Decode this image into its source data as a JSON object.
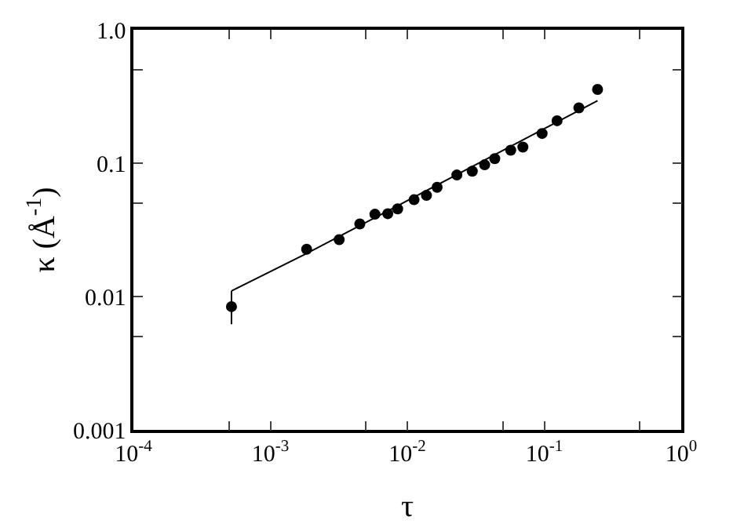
{
  "chart_data": {
    "type": "scatter",
    "xlabel": "τ",
    "ylabel": "κ (Å$^{-1}$)",
    "log": "xy",
    "grid": false,
    "xlim": [
      0.0001,
      1
    ],
    "ylim": [
      0.001,
      1
    ],
    "xticks": [
      {
        "value": 0.0001,
        "label": "10$^{-4}$"
      },
      {
        "value": 0.0005,
        "label": null
      },
      {
        "value": 0.001,
        "label": "10$^{-3}$"
      },
      {
        "value": 0.005,
        "label": null
      },
      {
        "value": 0.01,
        "label": "10$^{-2}$"
      },
      {
        "value": 0.05,
        "label": null
      },
      {
        "value": 0.1,
        "label": "10$^{-1}$"
      },
      {
        "value": 0.5,
        "label": null
      },
      {
        "value": 1,
        "label": "10$^{0}$"
      }
    ],
    "yticks": [
      0.001,
      {
        "value": 0.005,
        "label": null
      },
      0.01,
      {
        "value": 0.05,
        "label": null
      },
      0.1,
      {
        "value": 0.5,
        "label": null
      },
      {
        "value": 1,
        "label": "1.0"
      }
    ],
    "series": [
      {
        "color": "#000000",
        "marker": "circle",
        "x": [
          0.00052,
          0.00184,
          0.00318,
          0.0045,
          0.0058,
          0.0072,
          0.0085,
          0.0112,
          0.0138,
          0.0165,
          0.023,
          0.0298,
          0.0367,
          0.0435,
          0.0569,
          0.0698,
          0.0964,
          0.124,
          0.179,
          0.245
        ],
        "values": [
          0.0084,
          0.0226,
          0.0267,
          0.035,
          0.0414,
          0.0418,
          0.0454,
          0.0532,
          0.0573,
          0.0659,
          0.0815,
          0.087,
          0.0972,
          0.108,
          0.125,
          0.132,
          0.167,
          0.208,
          0.26,
          0.357
        ],
        "errors": [
          [
            0.0062,
            0.011
          ],
          null,
          null,
          null,
          null,
          null,
          null,
          null,
          null,
          null,
          null,
          null,
          null,
          null,
          null,
          null,
          null,
          null,
          null,
          null
        ]
      },
      {
        "type": "line",
        "color": "#000000",
        "marker": "none",
        "line_style": "solid",
        "x": [
          0.00052,
          0.00184,
          0.245
        ],
        "values": [
          0.011,
          0.021,
          0.294
        ]
      }
    ]
  }
}
